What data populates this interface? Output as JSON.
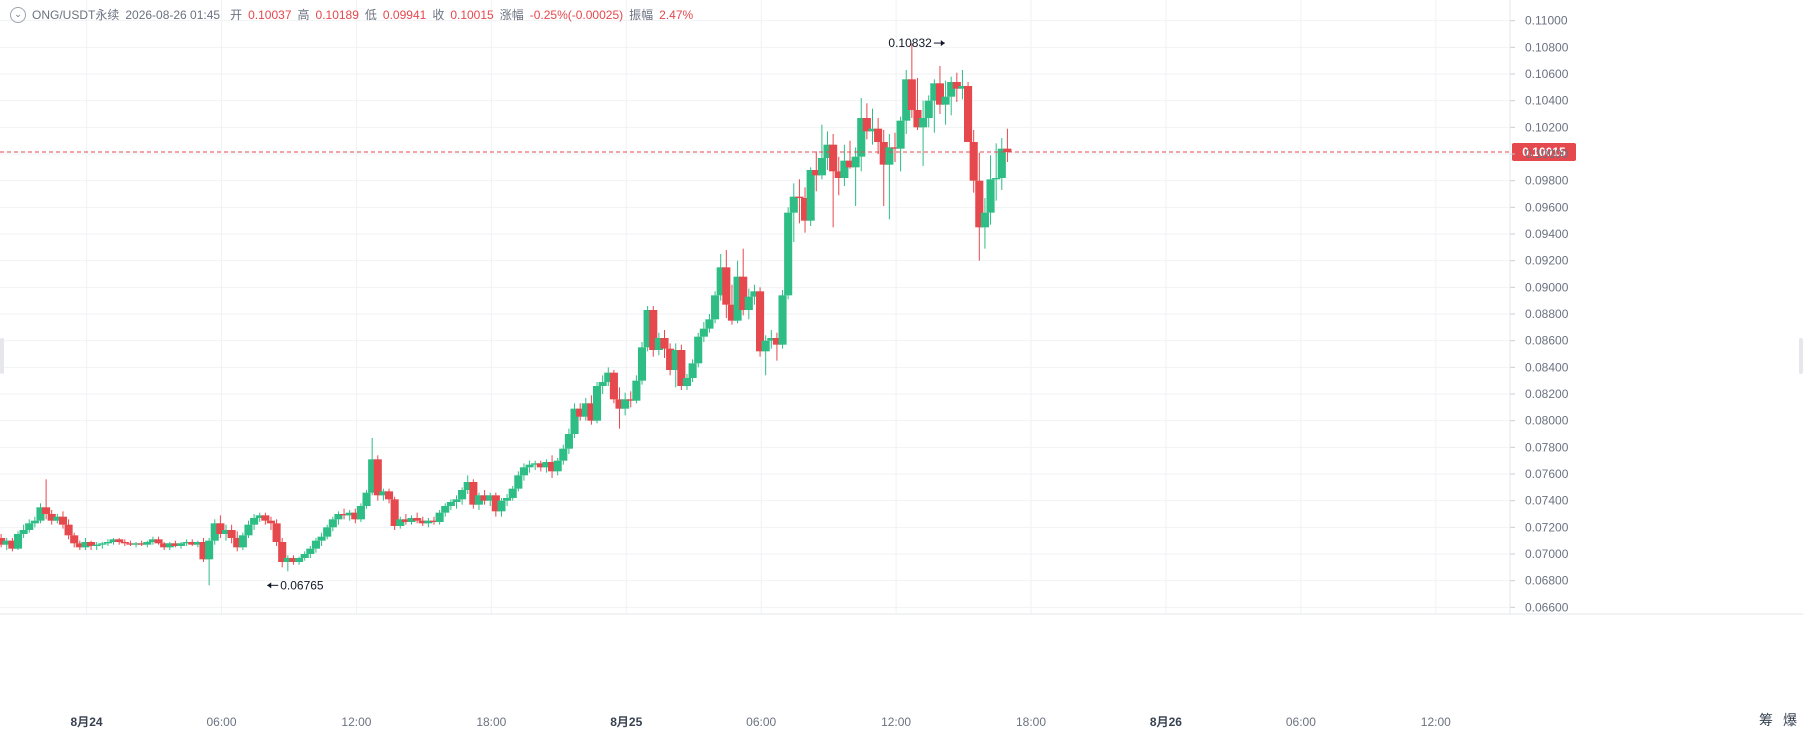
{
  "header": {
    "symbol": "ONG/USDT永续",
    "datetime": "2026-08-26 01:45",
    "open_label": "开",
    "open": "0.10037",
    "high_label": "高",
    "high": "0.10189",
    "low_label": "低",
    "low": "0.09941",
    "close_label": "收",
    "close": "0.10015",
    "change_label": "涨幅",
    "change": "-0.25%(-0.00025)",
    "amplitude_label": "振幅",
    "amplitude": "2.47%"
  },
  "colors": {
    "up": "#2ebd85",
    "down": "#e5484d",
    "grid": "#f1f2f4",
    "axis_text": "#6b7280"
  },
  "toolbar": {
    "icon_a": "筹",
    "icon_b": "爆"
  },
  "chart_data": {
    "type": "candlestick",
    "interval": "30m",
    "x_ticks": [
      {
        "label": "8月24",
        "t": 0,
        "bold": true
      },
      {
        "label": "06:00",
        "t": 12
      },
      {
        "label": "12:00",
        "t": 24
      },
      {
        "label": "18:00",
        "t": 36
      },
      {
        "label": "8月25",
        "t": 48,
        "bold": true
      },
      {
        "label": "06:00",
        "t": 60
      },
      {
        "label": "12:00",
        "t": 72
      },
      {
        "label": "18:00",
        "t": 84
      },
      {
        "label": "8月26",
        "t": 96,
        "bold": true
      },
      {
        "label": "06:00",
        "t": 108
      },
      {
        "label": "12:00",
        "t": 120
      }
    ],
    "x_range": [
      -7.7,
      126.6
    ],
    "y_ticks": [
      "0.06600",
      "0.06800",
      "0.07000",
      "0.07200",
      "0.07400",
      "0.07600",
      "0.07800",
      "0.08000",
      "0.08200",
      "0.08400",
      "0.08600",
      "0.08800",
      "0.09000",
      "0.09200",
      "0.09400",
      "0.09600",
      "0.09800",
      "0.10000",
      "0.10200",
      "0.10400",
      "0.10600",
      "0.10800",
      "0.11000"
    ],
    "y_range": [
      0.0655,
      0.1108
    ],
    "last_price": 0.10015,
    "last_price_label": "0.10015",
    "max_marker": {
      "t": 76.6,
      "value": 0.10832,
      "label": "0.10832"
    },
    "min_marker": {
      "t": 15.8,
      "value": 0.06765,
      "label": "0.06765"
    },
    "first_candle_t": -7.6,
    "candles": [
      [
        0.0712,
        0.0715,
        0.0705,
        0.0707
      ],
      [
        0.0707,
        0.0712,
        0.0703,
        0.071
      ],
      [
        0.071,
        0.0712,
        0.0702,
        0.0704
      ],
      [
        0.0704,
        0.0717,
        0.0703,
        0.0715
      ],
      [
        0.0715,
        0.0722,
        0.0712,
        0.0718
      ],
      [
        0.0718,
        0.0726,
        0.0716,
        0.0723
      ],
      [
        0.0723,
        0.0728,
        0.072,
        0.0725
      ],
      [
        0.0725,
        0.0738,
        0.0723,
        0.0735
      ],
      [
        0.0735,
        0.0756,
        0.0726,
        0.073
      ],
      [
        0.073,
        0.0733,
        0.0722,
        0.0725
      ],
      [
        0.0725,
        0.073,
        0.0723,
        0.0728
      ],
      [
        0.0728,
        0.0732,
        0.0719,
        0.0722
      ],
      [
        0.0722,
        0.0726,
        0.0711,
        0.0714
      ],
      [
        0.0714,
        0.0716,
        0.0705,
        0.0708
      ],
      [
        0.0708,
        0.071,
        0.0703,
        0.0705
      ],
      [
        0.0705,
        0.0712,
        0.0703,
        0.0709
      ],
      [
        0.0709,
        0.071,
        0.0703,
        0.0706
      ],
      [
        0.0706,
        0.0709,
        0.0703,
        0.0707
      ],
      [
        0.0707,
        0.0709,
        0.0704,
        0.0708
      ],
      [
        0.0708,
        0.0711,
        0.0706,
        0.0709
      ],
      [
        0.0709,
        0.0712,
        0.0707,
        0.0711
      ],
      [
        0.0711,
        0.0712,
        0.0707,
        0.0709
      ],
      [
        0.0709,
        0.0711,
        0.0706,
        0.0708
      ],
      [
        0.0708,
        0.071,
        0.0706,
        0.0707
      ],
      [
        0.0707,
        0.0709,
        0.0705,
        0.0708
      ],
      [
        0.0708,
        0.071,
        0.0706,
        0.0707
      ],
      [
        0.0707,
        0.071,
        0.0705,
        0.0709
      ],
      [
        0.0709,
        0.0713,
        0.0707,
        0.0711
      ],
      [
        0.0711,
        0.0713,
        0.0707,
        0.0708
      ],
      [
        0.0708,
        0.0709,
        0.0703,
        0.0705
      ],
      [
        0.0705,
        0.0709,
        0.0703,
        0.0708
      ],
      [
        0.0708,
        0.071,
        0.0705,
        0.0706
      ],
      [
        0.0706,
        0.0709,
        0.0704,
        0.0708
      ],
      [
        0.0708,
        0.0711,
        0.0706,
        0.0709
      ],
      [
        0.0709,
        0.0711,
        0.0706,
        0.0707
      ],
      [
        0.0707,
        0.071,
        0.0705,
        0.0709
      ],
      [
        0.0709,
        0.0712,
        0.0694,
        0.0696
      ],
      [
        0.0696,
        0.0712,
        0.06765,
        0.071
      ],
      [
        0.071,
        0.0726,
        0.0707,
        0.0723
      ],
      [
        0.0723,
        0.0729,
        0.0712,
        0.0715
      ],
      [
        0.0715,
        0.0722,
        0.071,
        0.0718
      ],
      [
        0.0718,
        0.0722,
        0.0708,
        0.0712
      ],
      [
        0.0712,
        0.0717,
        0.0702,
        0.0705
      ],
      [
        0.0705,
        0.0716,
        0.0703,
        0.0714
      ],
      [
        0.0714,
        0.0725,
        0.0712,
        0.0722
      ],
      [
        0.0722,
        0.073,
        0.0718,
        0.0727
      ],
      [
        0.0727,
        0.0731,
        0.0724,
        0.0729
      ],
      [
        0.0729,
        0.0731,
        0.0722,
        0.0725
      ],
      [
        0.0725,
        0.0728,
        0.0718,
        0.0723
      ],
      [
        0.0723,
        0.0726,
        0.0706,
        0.0709
      ],
      [
        0.0709,
        0.0712,
        0.069,
        0.0694
      ],
      [
        0.0694,
        0.0699,
        0.0687,
        0.0697
      ],
      [
        0.0697,
        0.0699,
        0.0692,
        0.0694
      ],
      [
        0.0694,
        0.0698,
        0.0692,
        0.0697
      ],
      [
        0.0697,
        0.0702,
        0.0695,
        0.07
      ],
      [
        0.07,
        0.0706,
        0.0697,
        0.0704
      ],
      [
        0.0704,
        0.0712,
        0.0701,
        0.071
      ],
      [
        0.071,
        0.0716,
        0.0706,
        0.0713
      ],
      [
        0.0713,
        0.0722,
        0.0711,
        0.072
      ],
      [
        0.072,
        0.0728,
        0.0717,
        0.0726
      ],
      [
        0.0726,
        0.0732,
        0.0722,
        0.073
      ],
      [
        0.073,
        0.0734,
        0.0726,
        0.0729
      ],
      [
        0.0729,
        0.0733,
        0.0725,
        0.0731
      ],
      [
        0.0731,
        0.0734,
        0.0723,
        0.0726
      ],
      [
        0.0726,
        0.0738,
        0.0724,
        0.0736
      ],
      [
        0.0736,
        0.0748,
        0.0734,
        0.0746
      ],
      [
        0.0746,
        0.0787,
        0.0744,
        0.0771
      ],
      [
        0.0771,
        0.0774,
        0.074,
        0.0744
      ],
      [
        0.0744,
        0.0749,
        0.074,
        0.0747
      ],
      [
        0.0747,
        0.0749,
        0.0738,
        0.0741
      ],
      [
        0.0741,
        0.0743,
        0.0718,
        0.0721
      ],
      [
        0.0721,
        0.0728,
        0.0719,
        0.0726
      ],
      [
        0.0726,
        0.073,
        0.0722,
        0.0724
      ],
      [
        0.0724,
        0.0729,
        0.0722,
        0.0727
      ],
      [
        0.0727,
        0.0731,
        0.0723,
        0.0725
      ],
      [
        0.0725,
        0.0728,
        0.0721,
        0.0723
      ],
      [
        0.0723,
        0.0727,
        0.072,
        0.0725
      ],
      [
        0.0725,
        0.0728,
        0.0722,
        0.0724
      ],
      [
        0.0724,
        0.0733,
        0.0722,
        0.0731
      ],
      [
        0.0731,
        0.0738,
        0.0728,
        0.0736
      ],
      [
        0.0736,
        0.0741,
        0.0733,
        0.0739
      ],
      [
        0.0739,
        0.0744,
        0.0734,
        0.0741
      ],
      [
        0.0741,
        0.075,
        0.0737,
        0.0748
      ],
      [
        0.0748,
        0.0759,
        0.0745,
        0.0754
      ],
      [
        0.0754,
        0.0756,
        0.0734,
        0.0737
      ],
      [
        0.0737,
        0.0746,
        0.0733,
        0.0744
      ],
      [
        0.0744,
        0.0748,
        0.0737,
        0.074
      ],
      [
        0.074,
        0.0746,
        0.0736,
        0.0744
      ],
      [
        0.0744,
        0.0746,
        0.0728,
        0.0732
      ],
      [
        0.0732,
        0.0742,
        0.0728,
        0.074
      ],
      [
        0.074,
        0.0745,
        0.0736,
        0.0742
      ],
      [
        0.0742,
        0.0751,
        0.074,
        0.0749
      ],
      [
        0.0749,
        0.0762,
        0.0747,
        0.0759
      ],
      [
        0.0759,
        0.0768,
        0.0755,
        0.0765
      ],
      [
        0.0765,
        0.077,
        0.0761,
        0.0767
      ],
      [
        0.0767,
        0.077,
        0.0763,
        0.0768
      ],
      [
        0.0768,
        0.077,
        0.0762,
        0.0765
      ],
      [
        0.0765,
        0.0771,
        0.0761,
        0.0769
      ],
      [
        0.0769,
        0.0774,
        0.0757,
        0.0762
      ],
      [
        0.0762,
        0.0772,
        0.0759,
        0.077
      ],
      [
        0.077,
        0.0782,
        0.0767,
        0.0779
      ],
      [
        0.0779,
        0.0794,
        0.0775,
        0.079
      ],
      [
        0.079,
        0.0813,
        0.0787,
        0.0809
      ],
      [
        0.0809,
        0.0813,
        0.08,
        0.0803
      ],
      [
        0.0803,
        0.0817,
        0.08,
        0.0813
      ],
      [
        0.0813,
        0.0819,
        0.0797,
        0.08
      ],
      [
        0.08,
        0.0829,
        0.0798,
        0.0826
      ],
      [
        0.0826,
        0.0834,
        0.082,
        0.0829
      ],
      [
        0.0829,
        0.084,
        0.0826,
        0.0836
      ],
      [
        0.0836,
        0.0838,
        0.0813,
        0.0816
      ],
      [
        0.0816,
        0.0825,
        0.0794,
        0.0809
      ],
      [
        0.0809,
        0.0821,
        0.0804,
        0.0816
      ],
      [
        0.0816,
        0.0822,
        0.081,
        0.0815
      ],
      [
        0.0815,
        0.0834,
        0.0813,
        0.083
      ],
      [
        0.083,
        0.0859,
        0.0827,
        0.0855
      ],
      [
        0.0855,
        0.0886,
        0.0852,
        0.0883
      ],
      [
        0.0883,
        0.0886,
        0.0848,
        0.0853
      ],
      [
        0.0853,
        0.0866,
        0.0849,
        0.0862
      ],
      [
        0.0862,
        0.0868,
        0.0847,
        0.0854
      ],
      [
        0.0854,
        0.0858,
        0.0834,
        0.0838
      ],
      [
        0.0838,
        0.0858,
        0.0825,
        0.0853
      ],
      [
        0.0853,
        0.0857,
        0.0823,
        0.0826
      ],
      [
        0.0826,
        0.0835,
        0.0823,
        0.0832
      ],
      [
        0.0832,
        0.0846,
        0.0829,
        0.0843
      ],
      [
        0.0843,
        0.0866,
        0.084,
        0.0863
      ],
      [
        0.0863,
        0.0874,
        0.0859,
        0.0869
      ],
      [
        0.0869,
        0.088,
        0.0866,
        0.0876
      ],
      [
        0.0876,
        0.0897,
        0.0873,
        0.0894
      ],
      [
        0.0894,
        0.0925,
        0.089,
        0.0915
      ],
      [
        0.0915,
        0.0928,
        0.0877,
        0.0887
      ],
      [
        0.0887,
        0.0902,
        0.0872,
        0.0875
      ],
      [
        0.0875,
        0.092,
        0.0873,
        0.0908
      ],
      [
        0.0908,
        0.0929,
        0.0879,
        0.0883
      ],
      [
        0.0883,
        0.0899,
        0.0876,
        0.0893
      ],
      [
        0.0893,
        0.0902,
        0.0887,
        0.0897
      ],
      [
        0.0897,
        0.09,
        0.0848,
        0.0852
      ],
      [
        0.0852,
        0.0864,
        0.0834,
        0.086
      ],
      [
        0.086,
        0.0868,
        0.0854,
        0.0862
      ],
      [
        0.0862,
        0.0866,
        0.0845,
        0.0857
      ],
      [
        0.0857,
        0.0898,
        0.0854,
        0.0894
      ],
      [
        0.0894,
        0.096,
        0.0891,
        0.0956
      ],
      [
        0.0956,
        0.0978,
        0.0934,
        0.0968
      ],
      [
        0.0968,
        0.0981,
        0.0948,
        0.0967
      ],
      [
        0.0967,
        0.0975,
        0.0941,
        0.095
      ],
      [
        0.095,
        0.099,
        0.0946,
        0.0988
      ],
      [
        0.0988,
        0.1002,
        0.0972,
        0.0984
      ],
      [
        0.0984,
        0.1022,
        0.0981,
        0.0997
      ],
      [
        0.0997,
        0.1017,
        0.0988,
        0.1007
      ],
      [
        0.1007,
        0.1015,
        0.0945,
        0.0987
      ],
      [
        0.0987,
        0.0998,
        0.0969,
        0.0982
      ],
      [
        0.0982,
        0.1007,
        0.0976,
        0.0995
      ],
      [
        0.0995,
        0.101,
        0.0989,
        0.099
      ],
      [
        0.099,
        0.1005,
        0.0961,
        0.0998
      ],
      [
        0.0998,
        0.1042,
        0.0987,
        0.1027
      ],
      [
        0.1027,
        0.1038,
        0.1011,
        0.1017
      ],
      [
        0.1017,
        0.1034,
        0.1007,
        0.1019
      ],
      [
        0.1019,
        0.1027,
        0.1,
        0.1009
      ],
      [
        0.1009,
        0.1018,
        0.0961,
        0.0992
      ],
      [
        0.0992,
        0.1015,
        0.0951,
        0.1005
      ],
      [
        0.1005,
        0.1016,
        0.0994,
        0.1004
      ],
      [
        0.1004,
        0.1028,
        0.0987,
        0.1025
      ],
      [
        0.1025,
        0.1063,
        0.1015,
        0.1056
      ],
      [
        0.1056,
        0.1083,
        0.1027,
        0.1033
      ],
      [
        0.1033,
        0.1057,
        0.1018,
        0.102
      ],
      [
        0.102,
        0.104,
        0.0991,
        0.1027
      ],
      [
        0.1027,
        0.1044,
        0.102,
        0.104
      ],
      [
        0.104,
        0.1056,
        0.1016,
        0.1053
      ],
      [
        0.1053,
        0.1066,
        0.103,
        0.1037
      ],
      [
        0.1037,
        0.1055,
        0.1022,
        0.1043
      ],
      [
        0.1043,
        0.1058,
        0.1029,
        0.1054
      ],
      [
        0.1054,
        0.1061,
        0.1039,
        0.1049
      ],
      [
        0.1049,
        0.1063,
        0.1041,
        0.1051
      ],
      [
        0.1051,
        0.1054,
        0.101,
        0.1009
      ],
      [
        0.1009,
        0.1018,
        0.0971,
        0.098
      ],
      [
        0.098,
        0.1001,
        0.092,
        0.0945
      ],
      [
        0.0945,
        0.0967,
        0.0929,
        0.0956
      ],
      [
        0.0956,
        0.0999,
        0.0947,
        0.0981
      ],
      [
        0.0981,
        0.1008,
        0.0965,
        0.0982
      ],
      [
        0.0982,
        0.1012,
        0.0973,
        0.1004
      ],
      [
        0.1004,
        0.1019,
        0.0994,
        0.10015
      ]
    ]
  }
}
